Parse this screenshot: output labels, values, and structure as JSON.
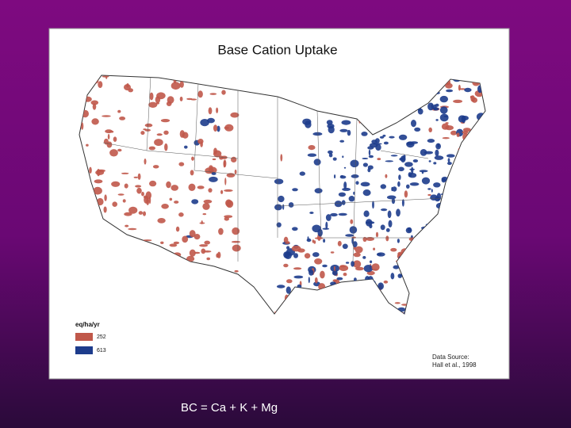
{
  "slide": {
    "title": "Base Cation Uptake",
    "legend": {
      "title": "eq/ha/yr",
      "items": [
        {
          "label": "252",
          "color": "#c0584a"
        },
        {
          "label": "613",
          "color": "#1d3c8c"
        }
      ]
    },
    "source": [
      "Data Source:",
      "Hall et al., 1998"
    ],
    "caption": "BC = Ca + K + Mg"
  }
}
